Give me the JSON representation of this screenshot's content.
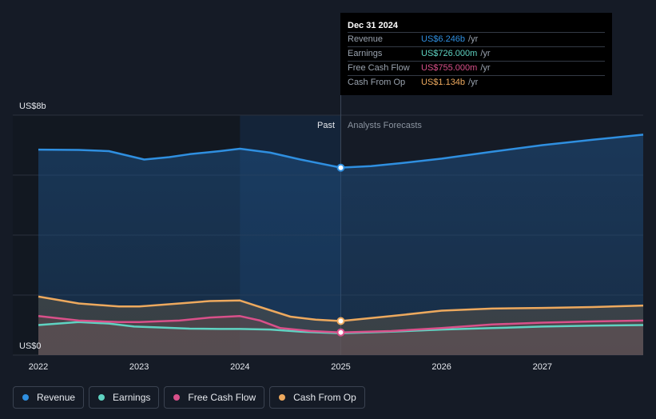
{
  "chart_data": {
    "type": "line",
    "x_range": [
      2022,
      2028
    ],
    "y_range": [
      0,
      8
    ],
    "x_ticks": [
      "2022",
      "2023",
      "2024",
      "2025",
      "2026",
      "2027"
    ],
    "y_tick_labels": {
      "top": "US$8b",
      "bottom": "US$0"
    },
    "region_labels": {
      "past": "Past",
      "forecast": "Analysts Forecasts"
    },
    "divider_x": 2025.0,
    "series": [
      {
        "name": "Revenue",
        "color": "#2f8fe0",
        "points": [
          [
            2022.0,
            6.85
          ],
          [
            2022.4,
            6.84
          ],
          [
            2022.7,
            6.8
          ],
          [
            2022.95,
            6.6
          ],
          [
            2023.05,
            6.52
          ],
          [
            2023.3,
            6.6
          ],
          [
            2023.5,
            6.7
          ],
          [
            2023.8,
            6.8
          ],
          [
            2024.0,
            6.88
          ],
          [
            2024.3,
            6.75
          ],
          [
            2024.6,
            6.52
          ],
          [
            2025.0,
            6.25
          ],
          [
            2025.3,
            6.3
          ],
          [
            2025.6,
            6.4
          ],
          [
            2026.0,
            6.55
          ],
          [
            2026.5,
            6.78
          ],
          [
            2027.0,
            7.0
          ],
          [
            2027.5,
            7.18
          ],
          [
            2028.0,
            7.35
          ]
        ]
      },
      {
        "name": "Earnings",
        "color": "#5fd3c2",
        "points": [
          [
            2022.0,
            1.0
          ],
          [
            2022.4,
            1.1
          ],
          [
            2022.7,
            1.05
          ],
          [
            2022.95,
            0.95
          ],
          [
            2023.2,
            0.92
          ],
          [
            2023.5,
            0.88
          ],
          [
            2023.8,
            0.87
          ],
          [
            2024.0,
            0.87
          ],
          [
            2024.3,
            0.85
          ],
          [
            2024.6,
            0.78
          ],
          [
            2025.0,
            0.726
          ],
          [
            2025.5,
            0.78
          ],
          [
            2026.0,
            0.85
          ],
          [
            2026.5,
            0.9
          ],
          [
            2027.0,
            0.95
          ],
          [
            2027.5,
            0.98
          ],
          [
            2028.0,
            1.0
          ]
        ]
      },
      {
        "name": "Free Cash Flow",
        "color": "#d9508a",
        "points": [
          [
            2022.0,
            1.3
          ],
          [
            2022.4,
            1.15
          ],
          [
            2022.8,
            1.1
          ],
          [
            2023.0,
            1.1
          ],
          [
            2023.4,
            1.15
          ],
          [
            2023.7,
            1.25
          ],
          [
            2024.0,
            1.3
          ],
          [
            2024.2,
            1.15
          ],
          [
            2024.4,
            0.9
          ],
          [
            2024.7,
            0.8
          ],
          [
            2025.0,
            0.755
          ],
          [
            2025.5,
            0.8
          ],
          [
            2026.0,
            0.9
          ],
          [
            2026.5,
            1.02
          ],
          [
            2027.0,
            1.08
          ],
          [
            2027.5,
            1.12
          ],
          [
            2028.0,
            1.15
          ]
        ]
      },
      {
        "name": "Cash From Op",
        "color": "#eda95e",
        "points": [
          [
            2022.0,
            1.95
          ],
          [
            2022.4,
            1.72
          ],
          [
            2022.8,
            1.62
          ],
          [
            2023.0,
            1.62
          ],
          [
            2023.4,
            1.72
          ],
          [
            2023.7,
            1.8
          ],
          [
            2024.0,
            1.82
          ],
          [
            2024.2,
            1.6
          ],
          [
            2024.5,
            1.28
          ],
          [
            2024.75,
            1.18
          ],
          [
            2025.0,
            1.134
          ],
          [
            2025.5,
            1.3
          ],
          [
            2026.0,
            1.48
          ],
          [
            2026.5,
            1.55
          ],
          [
            2027.0,
            1.57
          ],
          [
            2027.5,
            1.6
          ],
          [
            2028.0,
            1.65
          ]
        ]
      }
    ],
    "highlight": {
      "x": 2025.0,
      "points": [
        {
          "series": "Revenue",
          "y": 6.246
        },
        {
          "series": "Cash From Op",
          "y": 1.134
        },
        {
          "series": "Free Cash Flow",
          "y": 0.755
        }
      ]
    }
  },
  "tooltip": {
    "date": "Dec 31 2024",
    "rows": [
      {
        "label": "Revenue",
        "value": "US$6.246b",
        "unit": "/yr",
        "color": "#2f8fe0"
      },
      {
        "label": "Earnings",
        "value": "US$726.000m",
        "unit": "/yr",
        "color": "#5fd3c2"
      },
      {
        "label": "Free Cash Flow",
        "value": "US$755.000m",
        "unit": "/yr",
        "color": "#d9508a"
      },
      {
        "label": "Cash From Op",
        "value": "US$1.134b",
        "unit": "/yr",
        "color": "#eda95e"
      }
    ]
  },
  "legend": [
    {
      "label": "Revenue",
      "color": "#2f8fe0"
    },
    {
      "label": "Earnings",
      "color": "#5fd3c2"
    },
    {
      "label": "Free Cash Flow",
      "color": "#d9508a"
    },
    {
      "label": "Cash From Op",
      "color": "#eda95e"
    }
  ]
}
